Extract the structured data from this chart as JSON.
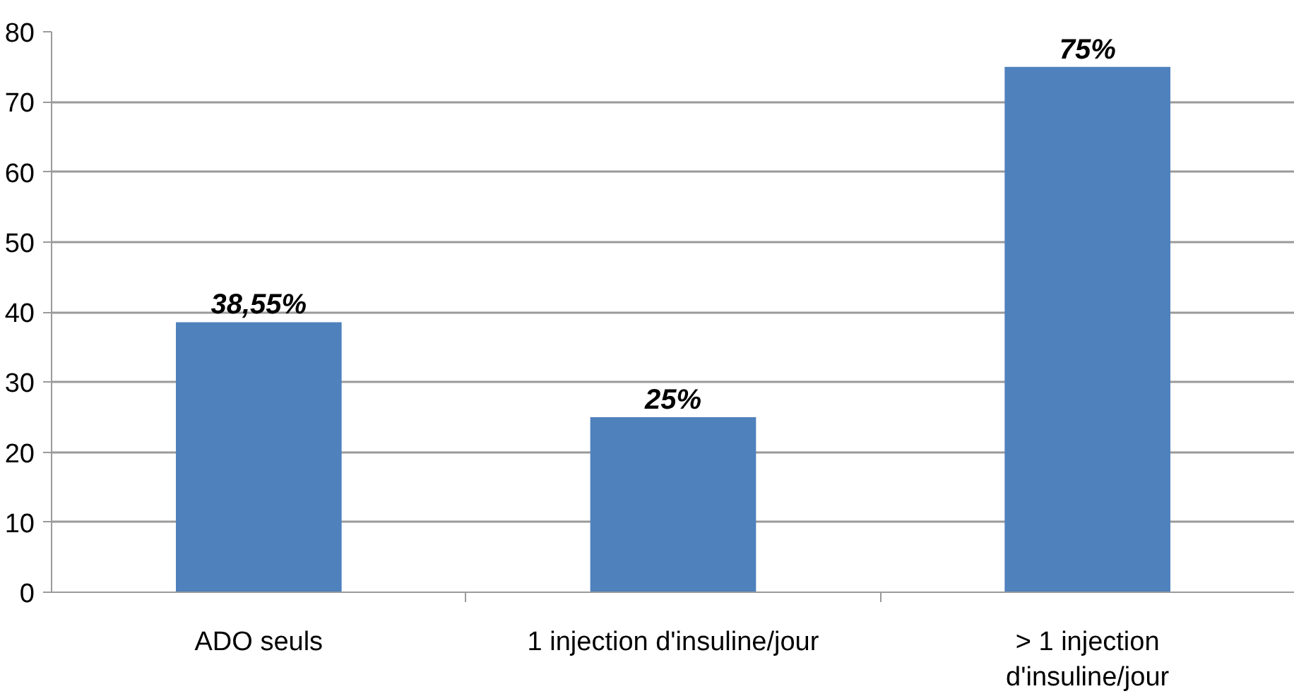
{
  "chart_data": {
    "type": "bar",
    "categories": [
      "ADO seuls",
      "1 injection d'insuline/jour",
      "> 1 injection\nd'insuline/jour"
    ],
    "values": [
      38.55,
      25,
      75
    ],
    "color": "#4f81bd",
    "value_labels": [
      "38,55%",
      "25%",
      "75%"
    ],
    "ylim": [
      0,
      80
    ],
    "yticks": [
      0,
      10,
      20,
      30,
      40,
      50,
      60,
      70,
      80
    ],
    "grid": "y"
  }
}
